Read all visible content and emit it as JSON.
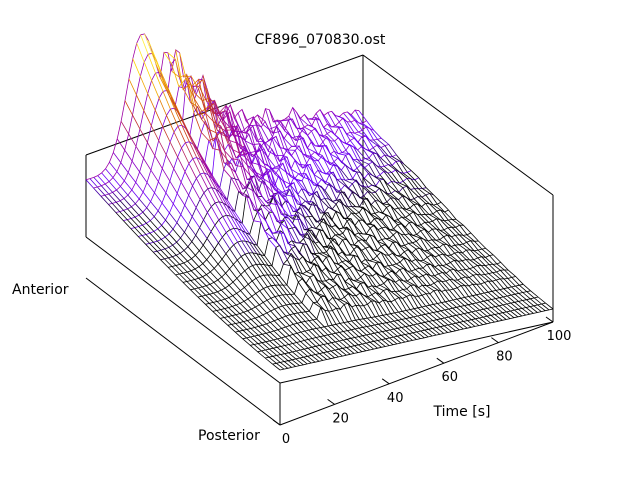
{
  "chart_data": {
    "type": "surface",
    "title": "CF896_070830.ost",
    "xlabel": "Time [s]",
    "ylabel_front": "Posterior",
    "ylabel_back": "Anterior",
    "xlim": [
      0,
      100
    ],
    "xticks": [
      {
        "value": 0,
        "label": "0"
      },
      {
        "value": 20,
        "label": "20"
      },
      {
        "value": 40,
        "label": "40"
      },
      {
        "value": 60,
        "label": "60"
      },
      {
        "value": 80,
        "label": "80"
      },
      {
        "value": 100,
        "label": "100"
      }
    ],
    "colormap": [
      "#000000",
      "#6a00ff",
      "#a000a0",
      "#d45000",
      "#ffd000",
      "#ffff60"
    ],
    "box_color": "#000000",
    "grid": false,
    "legend": "none"
  }
}
